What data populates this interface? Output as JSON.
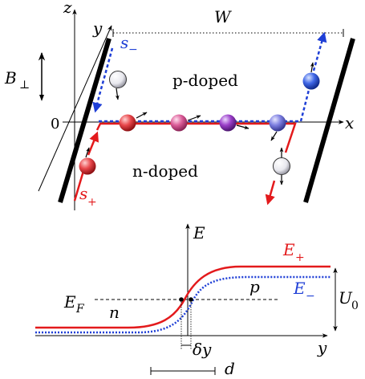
{
  "colors": {
    "red": "#e31a1c",
    "blue": "#1f3fd6",
    "black": "#000000",
    "gray": "#777777"
  },
  "top_panel": {
    "axis_z": "z",
    "axis_y": "y",
    "axis_x": "x",
    "origin": "0",
    "width_label": "W",
    "field_label": "B",
    "field_sub": "⊥",
    "p_region": "p-doped",
    "n_region": "n-doped",
    "s_minus": "s",
    "s_minus_sub": "−",
    "s_plus": "s",
    "s_plus_sub": "+"
  },
  "bottom_panel": {
    "axis_E": "E",
    "axis_y": "y",
    "curve_plus": "E",
    "curve_plus_sub": "+",
    "curve_minus": "E",
    "curve_minus_sub": "−",
    "fermi": "E",
    "fermi_sub": "F",
    "n_label": "n",
    "p_label": "p",
    "gap": "U",
    "gap_sub": "0",
    "delta_y": "δy",
    "d_label": "d"
  }
}
